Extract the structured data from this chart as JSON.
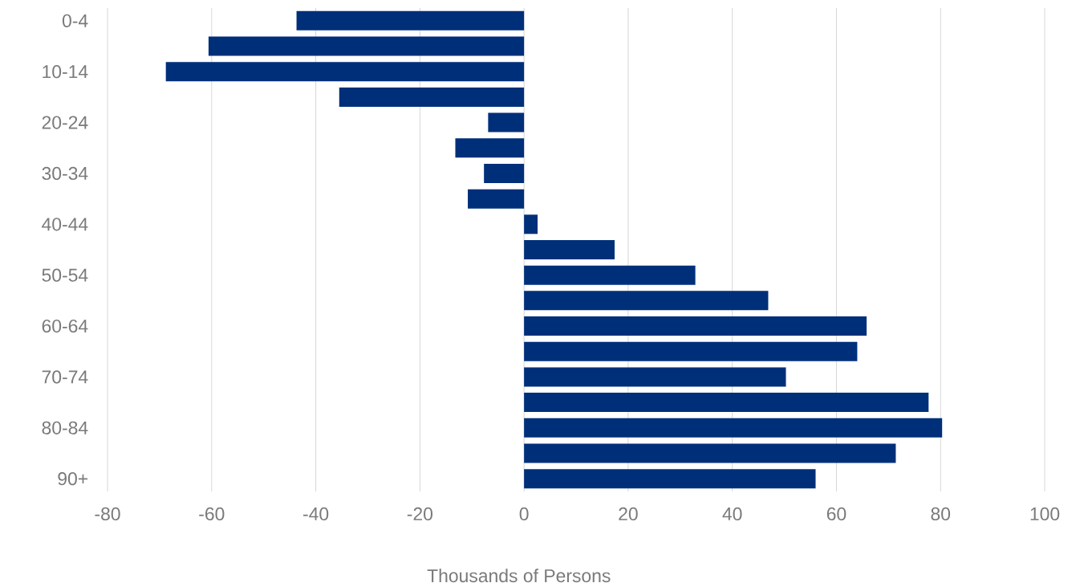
{
  "chart_data": {
    "type": "bar",
    "orientation": "horizontal",
    "xlabel": "Thousands of Persons",
    "categories": [
      "0-4",
      null,
      "10-14",
      null,
      "20-24",
      null,
      "30-34",
      null,
      "40-44",
      null,
      "50-54",
      null,
      "60-64",
      null,
      "70-74",
      null,
      "80-84",
      null,
      "90+"
    ],
    "values": [
      -43.7,
      -60.6,
      -68.8,
      -35.5,
      -6.9,
      -13.2,
      -7.7,
      -10.8,
      2.6,
      17.4,
      32.9,
      46.9,
      65.8,
      64.0,
      50.3,
      77.7,
      80.3,
      71.4,
      56.0
    ],
    "color": "#002f7a",
    "xlim": [
      -80,
      100
    ],
    "xticks": [
      -80,
      -60,
      -40,
      -20,
      0,
      20,
      40,
      60,
      80,
      100
    ],
    "grid": "x"
  }
}
